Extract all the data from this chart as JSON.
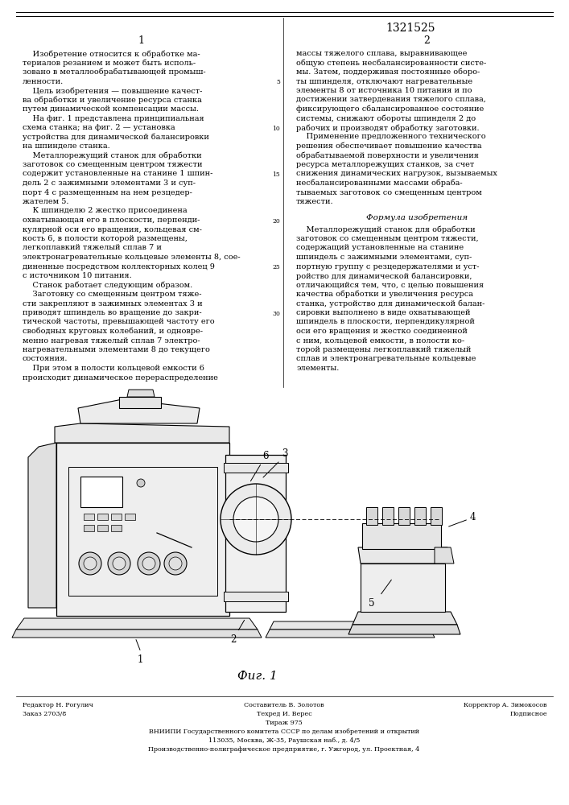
{
  "patent_number": "1321525",
  "col1_label": "1",
  "col2_label": "2",
  "background_color": "#ffffff",
  "text_color": "#000000",
  "fig_label": "Фиг. 1",
  "col1_lines": [
    "    Изобретение относится к обработке ма-",
    "териалов резанием и может быть исполь-",
    "зовано в металлообрабатывающей промыш-",
    "ленности.",
    "    Цель изобретения — повышение качест-",
    "ва обработки и увеличение ресурса станка",
    "путем динамической компенсации массы.",
    "    На фиг. 1 представлена принципиальная",
    "схема станка; на фиг. 2 — установка",
    "устройства для динамической балансировки",
    "на шпинделе станка.",
    "    Металлорежущий станок для обработки",
    "заготовок со смещенным центром тяжести",
    "содержит установленные на станине 1 шпин-",
    "дель 2 с зажимными элементами 3 и суп-",
    "порт 4 с размещенным на нем резцедер-",
    "жателем 5.",
    "    К шпинделю 2 жестко присоединена",
    "охватывающая его в плоскости, перпенди-",
    "кулярной оси его вращения, кольцевая см-",
    "кость 6, в полости которой размещены,",
    "легкоплавкий тяжелый сплав 7 и",
    "электронагревательные кольцевые элементы 8, сое-",
    "диненные посредством коллекторных колец 9",
    "с источником 10 питания.",
    "    Станок работает следующим образом.",
    "    Заготовку со смещенным центром тяже-",
    "сти закрепляют в зажимных элементах 3 и",
    "приводят шпиндель во вращение до закри-",
    "тической частоты, превышающей частоту его",
    "свободных круговых колебаний, и одновре-",
    "менно нагревая тяжелый сплав 7 электро-",
    "нагревательными элементами 8 до текущего",
    "состояния.",
    "    При этом в полости кольцевой емкости 6",
    "происходит динамическое перераспределение"
  ],
  "col2_lines": [
    "массы тяжелого сплава, выравнивающее",
    "общую степень несбалансированности систе-",
    "мы. Затем, поддерживая постоянные оборо-",
    "ты шпинделя, отключают нагревательные",
    "элементы 8 от источника 10 питания и по",
    "достижении затвердевания тяжелого сплава,",
    "фиксирующего сбалансированное состояние",
    "системы, снижают обороты шпинделя 2 до",
    "рабочих и производят обработку заготовки.",
    "    Применение предложенного технического",
    "решения обеспечивает повышение качества",
    "обрабатываемой поверхности и увеличения",
    "ресурса металлорежущих станков, за счет",
    "снижения динамических нагрузок, вызываемых",
    "несбалансированными массами обраба-",
    "тываемых заготовок со смещенным центром",
    "тяжести."
  ],
  "formula_title": "Формула изобретения",
  "formula_lines": [
    "    Металлорежущий станок для обработки",
    "заготовок со смещенным центром тяжести,",
    "содержащий установленные на станине",
    "шпиндель с зажимными элементами, суп-",
    "портную группу с резцедержателями и уст-",
    "ройство для динамической балансировки,",
    "отличающийся тем, что, с целью повышения",
    "качества обработки и увеличения ресурса",
    "станка, устройство для динамической балан-",
    "сировки выполнено в виде охватывающей",
    "шпиндель в плоскости, перпендикулярной",
    "оси его вращения и жестко соединенной",
    "с ним, кольцевой емкости, в полости ко-",
    "торой размещены легкоплавкий тяжелый",
    "сплав и электронагревательные кольцевые",
    "элементы."
  ],
  "line_numbers": [
    5,
    10,
    15,
    20,
    25,
    30
  ],
  "footer_left1": "Редактор Н. Рогулич",
  "footer_left2": "Заказ 2703/8",
  "footer_center1": "Составитель В. Золотов",
  "footer_center2": "Техред И. Верес",
  "footer_center3": "Тираж 975",
  "footer_right1": "Корректор А. Зимокосов",
  "footer_right2": "Подписное",
  "footer_vniipi": "ВНИИПИ Государственного комитета СССР по делам изобретений и открытий",
  "footer_addr": "113035, Москва, Ж-35, Раушская наб., д. 4/5",
  "footer_poly": "Производственно-полиграфическое предприятие, г. Ужгород, ул. Проектная, 4"
}
